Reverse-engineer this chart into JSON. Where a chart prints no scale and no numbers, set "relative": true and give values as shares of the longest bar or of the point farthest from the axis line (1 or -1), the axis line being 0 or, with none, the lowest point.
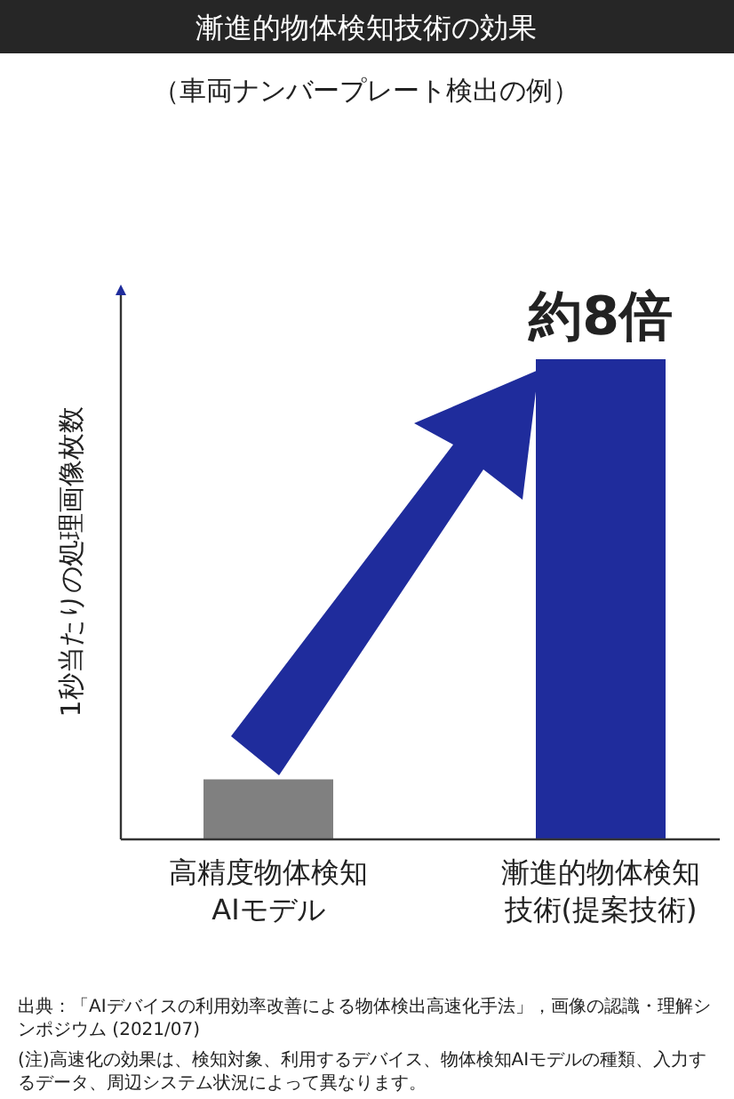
{
  "chart_data": {
    "type": "bar",
    "title": "漸進的物体検知技術の効果",
    "subtitle": "（車両ナンバープレート検出の例）",
    "ylabel": "1秒当たりの処理画像枚数",
    "categories": [
      "高精度物体検知AIモデル",
      "漸進的物体検知技術(提案技術)"
    ],
    "values": [
      0.125,
      1
    ],
    "colors": [
      "#808080",
      "#1f2c9c"
    ],
    "relative": true,
    "annotations": [
      {
        "text": "約8倍",
        "x": "漸進的物体検知技術(提案技術)",
        "y": 1
      },
      "出典：「AIデバイスの利用効率改善による物体検出高速化手法」，画像の認識・理解シンポジウム (2021/07)",
      "(注)高速化の効果は、検知対象、利用するデバイス、物体検知AIモデルの種類、入力するデータ、周辺システム状況によって異なります。"
    ]
  }
}
